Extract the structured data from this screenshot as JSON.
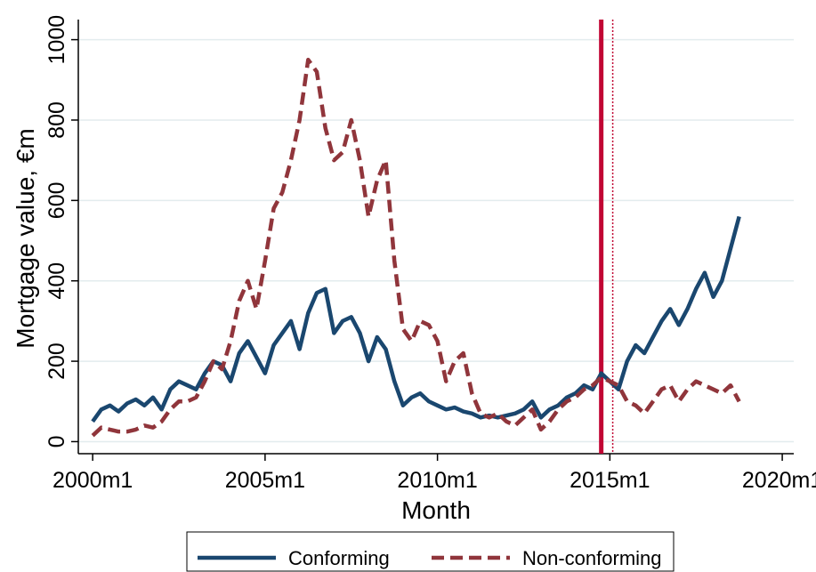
{
  "chart_data": {
    "type": "line",
    "x_label": "Month",
    "y_label": "Mortgage value, €m",
    "x": [
      480,
      483,
      486,
      489,
      492,
      495,
      498,
      501,
      504,
      507,
      510,
      513,
      516,
      519,
      522,
      525,
      528,
      531,
      534,
      537,
      540,
      543,
      546,
      549,
      552,
      555,
      558,
      561,
      564,
      567,
      570,
      573,
      576,
      579,
      582,
      585,
      588,
      591,
      594,
      597,
      600,
      603,
      606,
      609,
      612,
      615,
      618,
      621,
      624,
      627,
      630,
      633,
      636,
      639,
      642,
      645,
      648,
      651,
      654,
      657,
      660,
      663,
      666,
      669,
      672,
      675,
      678,
      681,
      684,
      687,
      690,
      693,
      696,
      699,
      702,
      705
    ],
    "series": [
      {
        "name": "Conforming",
        "color": "#1a476f",
        "dash": "solid",
        "values": [
          50,
          80,
          90,
          75,
          95,
          105,
          90,
          110,
          80,
          130,
          150,
          140,
          130,
          170,
          200,
          190,
          150,
          220,
          250,
          210,
          170,
          240,
          270,
          300,
          230,
          320,
          370,
          380,
          270,
          300,
          310,
          270,
          200,
          260,
          230,
          150,
          90,
          110,
          120,
          100,
          90,
          80,
          85,
          75,
          70,
          60,
          65,
          60,
          65,
          70,
          80,
          100,
          60,
          80,
          90,
          110,
          120,
          140,
          130,
          170,
          150,
          130,
          200,
          240,
          220,
          260,
          300,
          330,
          290,
          330,
          380,
          420,
          360,
          400,
          480,
          560
        ]
      },
      {
        "name": "Non-conforming",
        "color": "#90353b",
        "dash": "dashed",
        "values": [
          15,
          35,
          30,
          25,
          25,
          30,
          40,
          35,
          50,
          80,
          100,
          100,
          110,
          150,
          200,
          180,
          250,
          350,
          400,
          330,
          450,
          580,
          620,
          700,
          800,
          950,
          920,
          780,
          700,
          720,
          800,
          700,
          560,
          650,
          700,
          450,
          280,
          250,
          300,
          290,
          250,
          150,
          200,
          220,
          120,
          70,
          60,
          70,
          50,
          40,
          60,
          80,
          30,
          50,
          80,
          100,
          110,
          130,
          140,
          160,
          150,
          140,
          100,
          90,
          70,
          100,
          130,
          140,
          100,
          130,
          150,
          140,
          130,
          120,
          140,
          100
        ]
      }
    ],
    "xlim": [
      475,
      724
    ],
    "xticks": [
      {
        "value": 480,
        "label": "2000m1"
      },
      {
        "value": 540,
        "label": "2005m1"
      },
      {
        "value": 600,
        "label": "2010m1"
      },
      {
        "value": 660,
        "label": "2015m1"
      },
      {
        "value": 720,
        "label": "2020m1"
      }
    ],
    "ylim": [
      -30,
      1050
    ],
    "yticks": [
      0,
      200,
      400,
      600,
      800,
      1000
    ],
    "grid": true,
    "legend": "bottom",
    "vlines": [
      {
        "x": 657,
        "color": "#c10534",
        "style": "solid"
      },
      {
        "x": 661,
        "color": "#c10534",
        "style": "dotted"
      }
    ]
  }
}
